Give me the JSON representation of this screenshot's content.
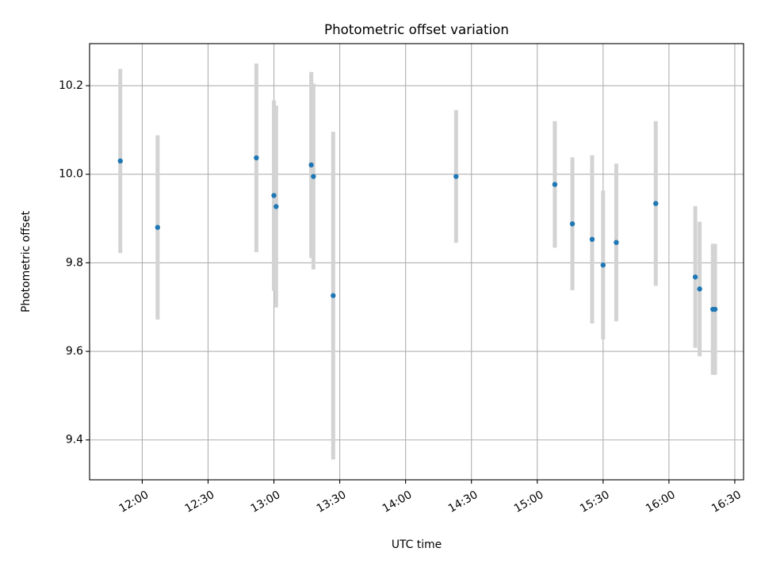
{
  "chart_data": {
    "type": "scatter",
    "title": "Photometric offset variation",
    "xlabel": "UTC time",
    "ylabel": "Photometric offset",
    "x_axis_kind": "time",
    "xlim": [
      "11:36",
      "16:34"
    ],
    "ylim": [
      9.31,
      10.295
    ],
    "xticks": [
      "12:00",
      "12:30",
      "13:00",
      "13:30",
      "14:00",
      "14:30",
      "15:00",
      "15:30",
      "16:00",
      "16:30"
    ],
    "xtick_rotation": 30,
    "yticks": [
      9.4,
      9.6,
      9.8,
      10.0,
      10.2
    ],
    "ytick_labels": [
      "9.4",
      "9.6",
      "9.8",
      "10.0",
      "10.2"
    ],
    "grid": true,
    "colors": {
      "points": "#1f77b4",
      "errorbars": "#d3d3d3",
      "grid": "#b0b0b0"
    },
    "series": [
      {
        "points": [
          {
            "x": "11:50",
            "y": 10.03,
            "err": 0.208
          },
          {
            "x": "12:07",
            "y": 9.88,
            "err": 0.208
          },
          {
            "x": "12:52",
            "y": 10.037,
            "err": 0.213
          },
          {
            "x": "13:00",
            "y": 9.952,
            "err": 0.215
          },
          {
            "x": "13:01",
            "y": 9.927,
            "err": 0.228
          },
          {
            "x": "13:17",
            "y": 10.021,
            "err": 0.21
          },
          {
            "x": "13:18",
            "y": 9.995,
            "err": 0.21
          },
          {
            "x": "13:27",
            "y": 9.726,
            "err": 0.37
          },
          {
            "x": "14:23",
            "y": 9.995,
            "err": 0.15
          },
          {
            "x": "15:08",
            "y": 9.977,
            "err": 0.143
          },
          {
            "x": "15:16",
            "y": 9.888,
            "err": 0.15
          },
          {
            "x": "15:25",
            "y": 9.853,
            "err": 0.19
          },
          {
            "x": "15:30",
            "y": 9.795,
            "err": 0.168
          },
          {
            "x": "15:36",
            "y": 9.846,
            "err": 0.178
          },
          {
            "x": "15:54",
            "y": 9.934,
            "err": 0.186
          },
          {
            "x": "16:12",
            "y": 9.768,
            "err": 0.16
          },
          {
            "x": "16:14",
            "y": 9.741,
            "err": 0.152
          },
          {
            "x": "16:20",
            "y": 9.695,
            "err": 0.148
          },
          {
            "x": "16:21",
            "y": 9.695,
            "err": 0.148
          }
        ]
      }
    ]
  }
}
